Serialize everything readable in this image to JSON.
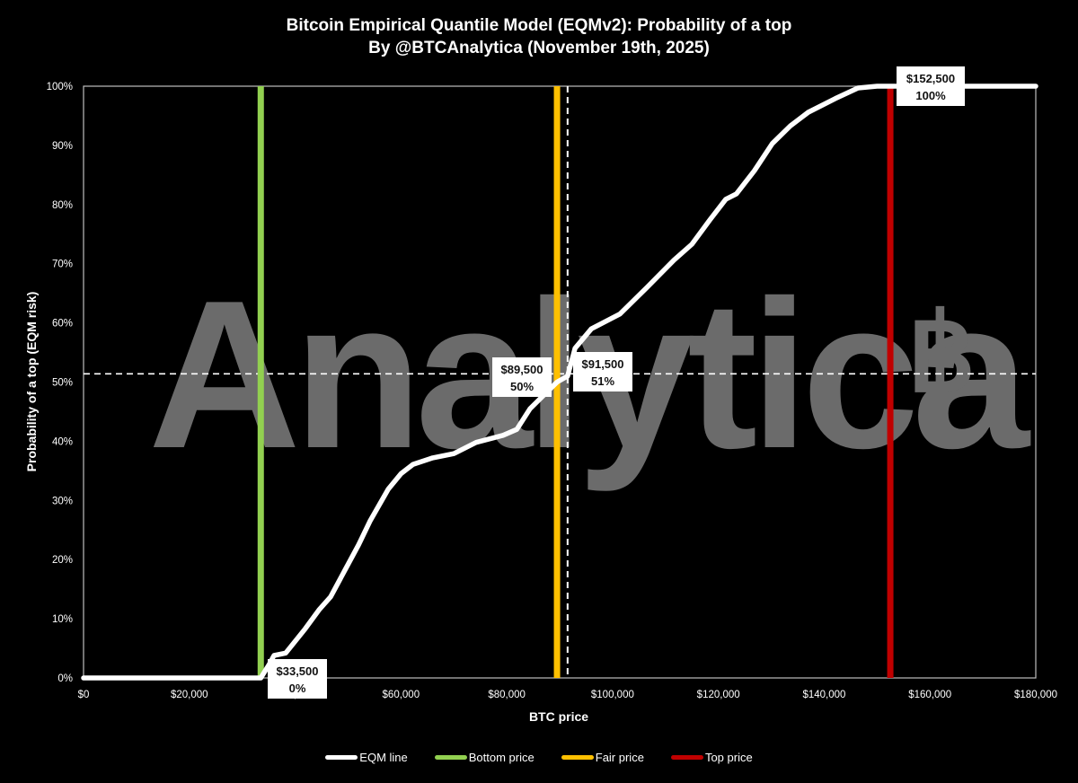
{
  "chart_data": {
    "type": "line",
    "title": "Bitcoin Empirical Quantile Model (EQMv2): Probability of a top",
    "subtitle": "By @BTCAnalytica (November 19th, 2025)",
    "xlabel": "BTC price",
    "ylabel": "Probability of a top (EQM risk)",
    "xlim": [
      0,
      180000
    ],
    "ylim": [
      0,
      100
    ],
    "x_ticks": [
      "$0",
      "$20,000",
      "$40,000",
      "$60,000",
      "$80,000",
      "$100,000",
      "$120,000",
      "$140,000",
      "$160,000",
      "$180,000"
    ],
    "y_ticks": [
      "0%",
      "10%",
      "20%",
      "30%",
      "40%",
      "50%",
      "60%",
      "70%",
      "80%",
      "90%",
      "100%"
    ],
    "grid": false,
    "legend_position": "bottom",
    "watermark": "Analytica฿",
    "series": [
      {
        "name": "EQM line",
        "color": "#ffffff",
        "x": [
          0,
          33500,
          35100,
          36000,
          38200,
          41900,
          44500,
          46700,
          49400,
          52000,
          54200,
          57600,
          60000,
          62300,
          66000,
          70000,
          74200,
          79300,
          81900,
          84400,
          86100,
          89500,
          91500,
          92900,
          96000,
          101400,
          106500,
          111600,
          115000,
          118400,
          121400,
          123400,
          126800,
          130200,
          133600,
          137000,
          142100,
          146400,
          150000,
          180000
        ],
        "y": [
          0,
          0,
          2.3,
          3.8,
          4.2,
          8.3,
          11.5,
          13.7,
          18.2,
          22.5,
          26.6,
          31.9,
          34.5,
          36.1,
          37.2,
          37.9,
          39.8,
          41.0,
          42.0,
          45.5,
          47.0,
          50,
          51,
          55.7,
          59.0,
          61.5,
          66.0,
          70.6,
          73.3,
          77.4,
          80.9,
          81.8,
          85.7,
          90.3,
          93.3,
          95.6,
          97.9,
          99.7,
          100,
          100
        ]
      },
      {
        "name": "Bottom price",
        "color": "#92d050",
        "x_value": 33500
      },
      {
        "name": "Fair price",
        "color": "#ffc000",
        "x_value": 89500
      },
      {
        "name": "Top price",
        "color": "#c00000",
        "x_value": 152500
      }
    ],
    "reference_lines": [
      {
        "type": "vertical-dashed",
        "x": 91500,
        "color": "#ffffff"
      },
      {
        "type": "horizontal-dashed",
        "y": 51.4,
        "color": "#ffffff"
      }
    ],
    "annotations": [
      {
        "price": "$33,500",
        "pct": "0%",
        "x": 33500,
        "y": 0
      },
      {
        "price": "$89,500",
        "pct": "50%",
        "x": 89500,
        "y": 50
      },
      {
        "price": "$91,500",
        "pct": "51%",
        "x": 91500,
        "y": 51
      },
      {
        "price": "$152,500",
        "pct": "100%",
        "x": 152500,
        "y": 100
      }
    ]
  },
  "legend": {
    "items": [
      {
        "label": "EQM line",
        "color": "#ffffff"
      },
      {
        "label": "Bottom price",
        "color": "#92d050"
      },
      {
        "label": "Fair price",
        "color": "#ffc000"
      },
      {
        "label": "Top price",
        "color": "#c00000"
      }
    ]
  }
}
